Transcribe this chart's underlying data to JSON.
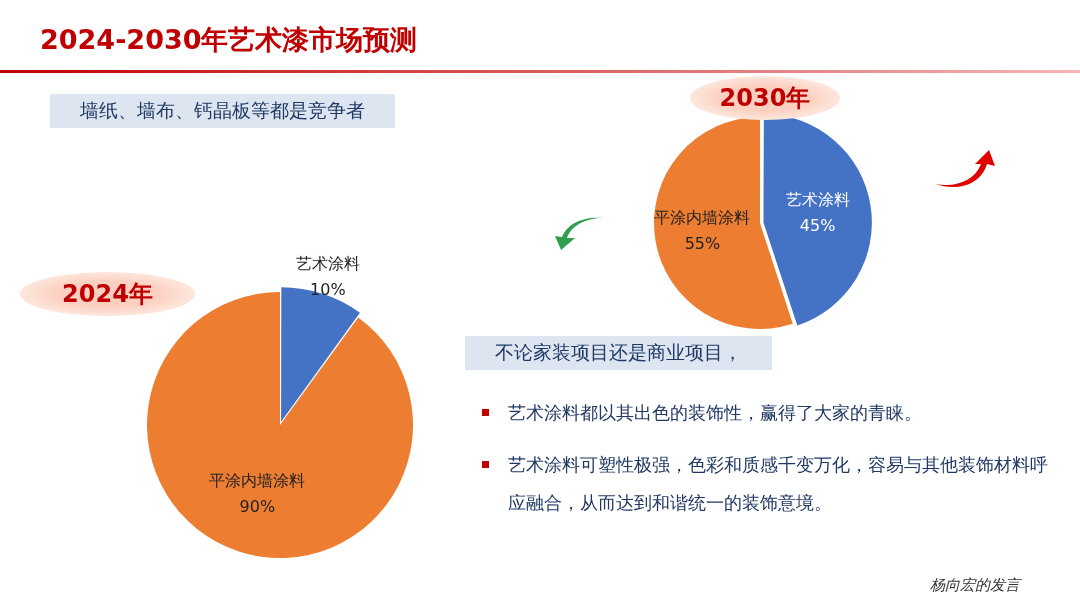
{
  "chart_data": [
    {
      "type": "other",
      "title": "2024-2030年艺术漆市场预测",
      "annotations": [
        "墙纸、墙布、钙晶板等都是竞争者"
      ]
    },
    {
      "type": "pie",
      "title": "2030年",
      "categories": [
        "艺术涂料",
        "平涂内墙涂料"
      ],
      "values": [
        45,
        55
      ],
      "colors": [
        "#4472c4",
        "#ed7d31"
      ],
      "value_labels": [
        "45%",
        "55%"
      ],
      "legend": false
    },
    {
      "type": "pie",
      "title": "2024年",
      "categories": [
        "艺术涂料",
        "平涂内墙涂料"
      ],
      "values": [
        10,
        90
      ],
      "colors": [
        "#4472c4",
        "#ed7d31"
      ],
      "value_labels": [
        "10%",
        "90%"
      ],
      "legend": false
    },
    {
      "type": "other",
      "annotations": [
        "不论家装项目还是商业项目，",
        "艺术涂料都以其出色的装饰性，赢得了大家的青睐。",
        "艺术涂料可塑性极强，色彩和质感千变万化，容易与其他装饰材料呼应融合，从而达到和谐统一的装饰意境。",
        "杨向宏的发言"
      ]
    }
  ]
}
